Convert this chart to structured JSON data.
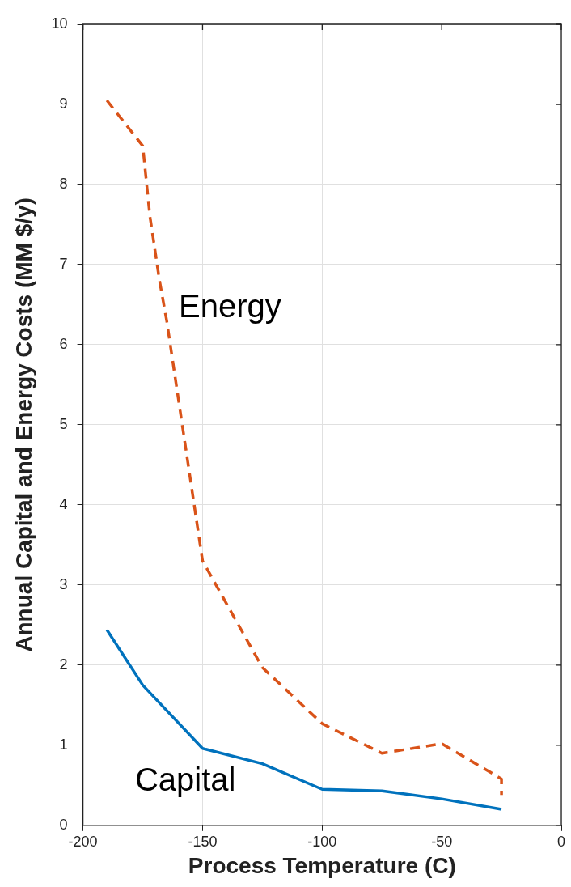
{
  "chart_data": {
    "type": "line",
    "xlabel": "Process Temperature (C)",
    "ylabel": "Annual Capital and Energy Costs (MM $/y)",
    "xlim": [
      -200,
      0
    ],
    "xticks": [
      -200,
      -150,
      -100,
      -50,
      0
    ],
    "ylim": [
      0,
      10
    ],
    "yticks": [
      0,
      1,
      2,
      3,
      4,
      5,
      6,
      7,
      8,
      9,
      10
    ],
    "grid": true,
    "legend": false,
    "marker": "none",
    "series": [
      {
        "name": "Energy",
        "color": "#d95319",
        "line_style": "dashed",
        "x": [
          -190,
          -175,
          -172,
          -168,
          -165,
          -160,
          -155,
          -150,
          -125,
          -100,
          -75,
          -50,
          -25,
          -25
        ],
        "values": [
          9.05,
          8.48,
          7.6,
          6.8,
          6.3,
          5.3,
          4.3,
          3.3,
          1.97,
          1.27,
          0.9,
          1.02,
          0.58,
          0.38
        ]
      },
      {
        "name": "Capital",
        "color": "#0072bd",
        "line_style": "solid",
        "x": [
          -190,
          -175,
          -150,
          -125,
          -100,
          -75,
          -50,
          -25
        ],
        "values": [
          2.44,
          1.75,
          0.96,
          0.77,
          0.45,
          0.43,
          0.33,
          0.2
        ]
      }
    ]
  }
}
